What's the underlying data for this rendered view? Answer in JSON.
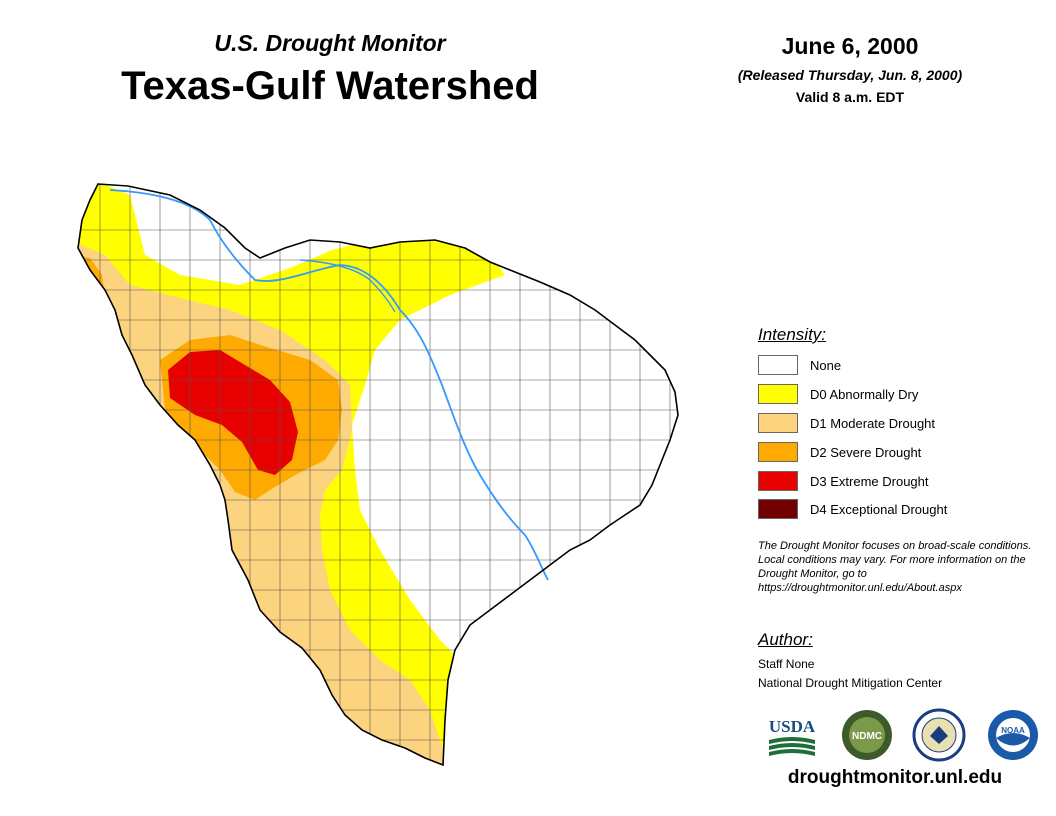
{
  "header": {
    "subtitle": "U.S. Drought Monitor",
    "title": "Texas-Gulf Watershed",
    "date": "June 6, 2000",
    "released": "(Released Thursday, Jun. 8, 2000)",
    "valid": "Valid 8 a.m. EDT"
  },
  "legend": {
    "title": "Intensity:",
    "items": [
      {
        "label": "None",
        "color": "#ffffff"
      },
      {
        "label": "D0 Abnormally Dry",
        "color": "#ffff00"
      },
      {
        "label": "D1 Moderate Drought",
        "color": "#fcd37f"
      },
      {
        "label": "D2 Severe Drought",
        "color": "#ffaa00"
      },
      {
        "label": "D3 Extreme Drought",
        "color": "#e60000"
      },
      {
        "label": "D4 Exceptional Drought",
        "color": "#730000"
      }
    ]
  },
  "note": "The Drought Monitor focuses on broad-scale conditions. Local conditions may vary. For more information on the Drought Monitor, go to https://droughtmonitor.unl.edu/About.aspx",
  "author": {
    "title": "Author:",
    "name": "Staff None",
    "organization": "National Drought Mitigation Center"
  },
  "logos": {
    "usda": "USDA",
    "ndmc": "NDMC",
    "noaa": "NOAA"
  },
  "website": "droughtmonitor.unl.edu",
  "colors": {
    "river": "#3399ff",
    "border": "#000000",
    "county": "#555555"
  }
}
